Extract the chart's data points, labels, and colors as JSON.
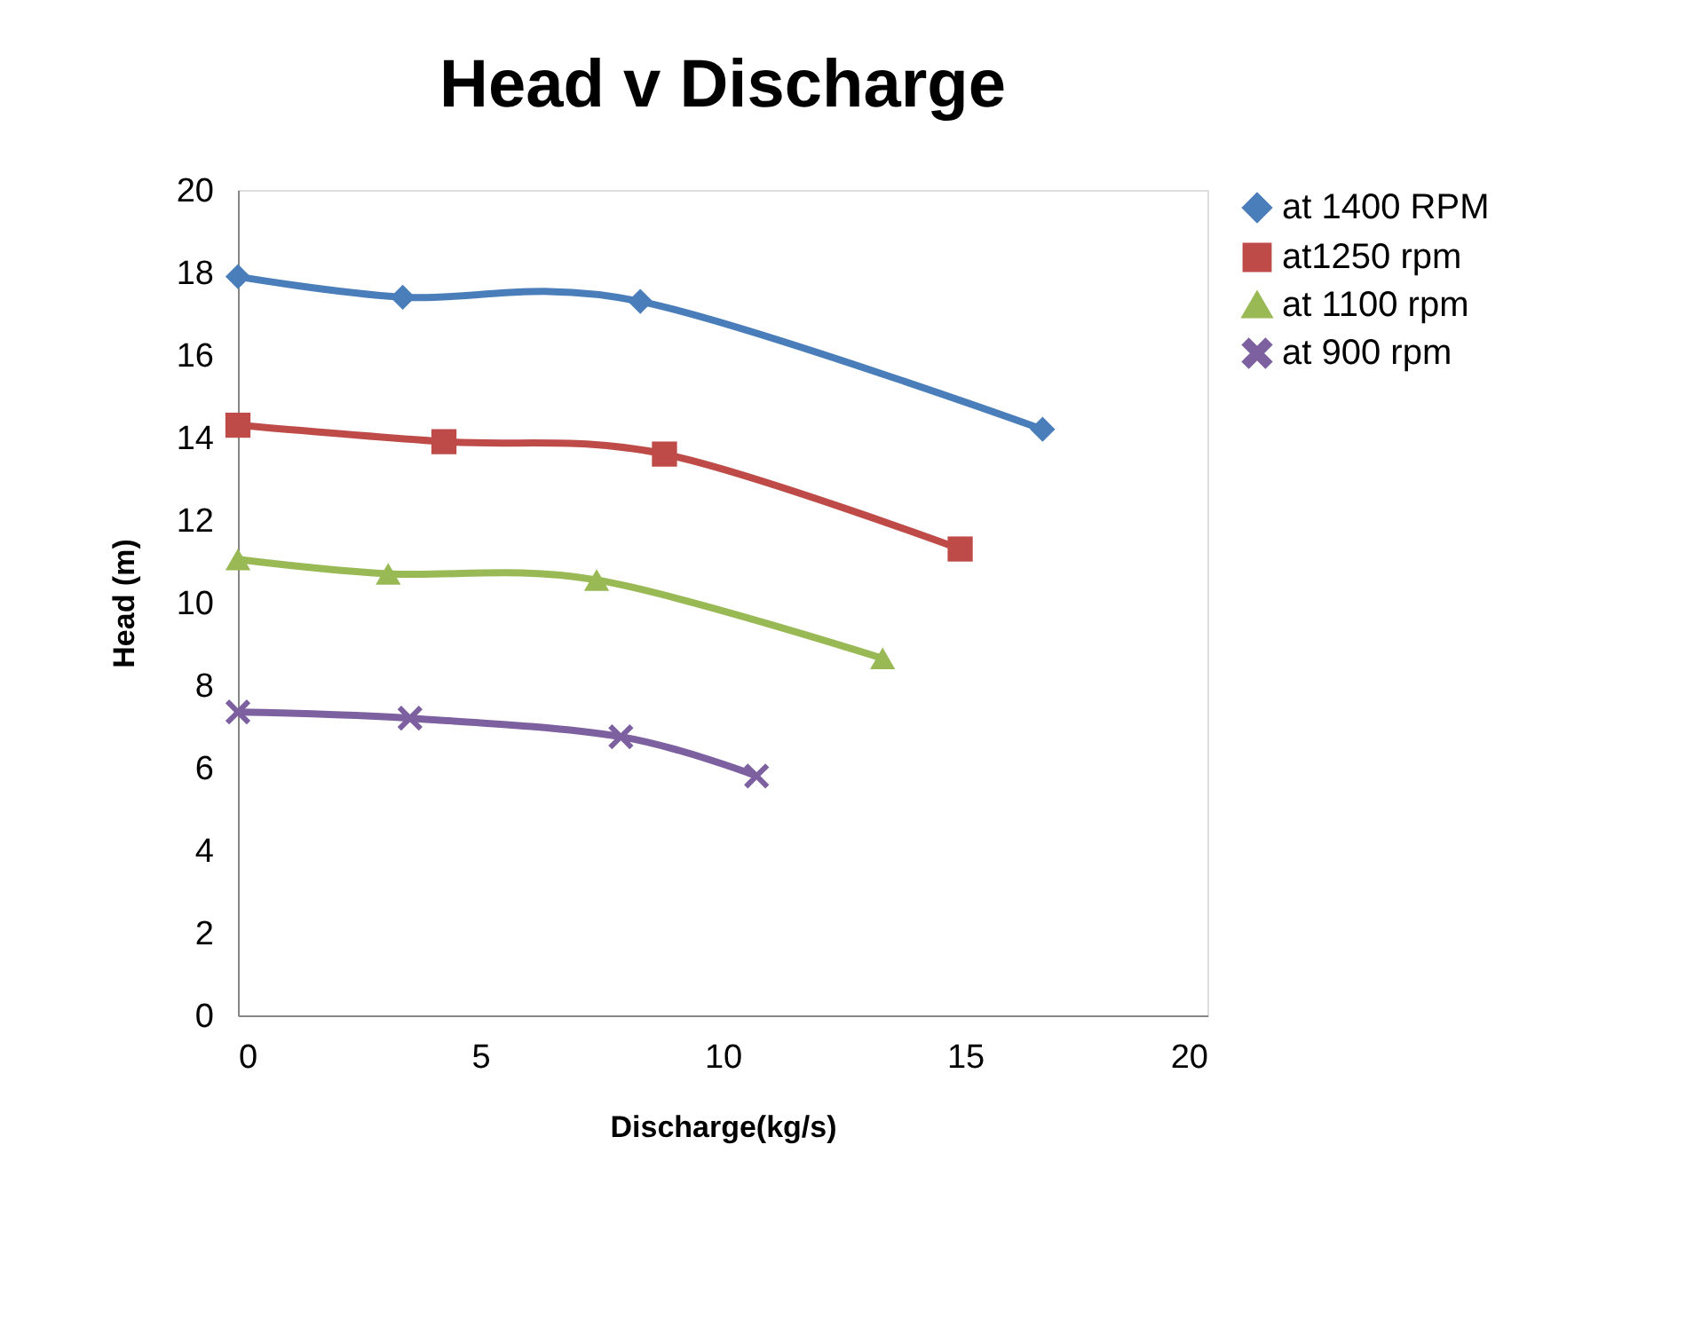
{
  "chart_data": {
    "type": "line",
    "title": "Head v Discharge",
    "xlabel": "Discharge(kg/s)",
    "ylabel": "Head (m)",
    "xlim": [
      0,
      20
    ],
    "xticks": [
      0,
      5,
      10,
      15,
      20
    ],
    "ylim": [
      0,
      20
    ],
    "yticks": [
      0,
      2,
      4,
      6,
      8,
      10,
      12,
      14,
      16,
      18,
      20
    ],
    "grid": false,
    "legend": "right",
    "line_style": "solid",
    "series": [
      {
        "name": "at 1400 RPM",
        "color": "#4a7ebb",
        "marker": "diamond",
        "x": [
          0,
          3.4,
          8.3,
          16.6
        ],
        "values": [
          17.9,
          17.4,
          17.3,
          14.2
        ]
      },
      {
        "name": "at1250 rpm",
        "color": "#be4b48",
        "marker": "square",
        "x": [
          0,
          4.25,
          8.8,
          14.9
        ],
        "values": [
          14.3,
          13.9,
          13.6,
          11.3
        ]
      },
      {
        "name": "at 1100 rpm",
        "color": "#98b954",
        "marker": "triangle",
        "x": [
          0,
          3.1,
          7.4,
          13.3
        ],
        "values": [
          11.05,
          10.7,
          10.55,
          8.65
        ]
      },
      {
        "name": "at 900 rpm",
        "color": "#7d60a0",
        "marker": "cross",
        "x": [
          0,
          3.55,
          7.9,
          10.7
        ],
        "values": [
          7.35,
          7.2,
          6.75,
          5.8
        ]
      }
    ]
  }
}
